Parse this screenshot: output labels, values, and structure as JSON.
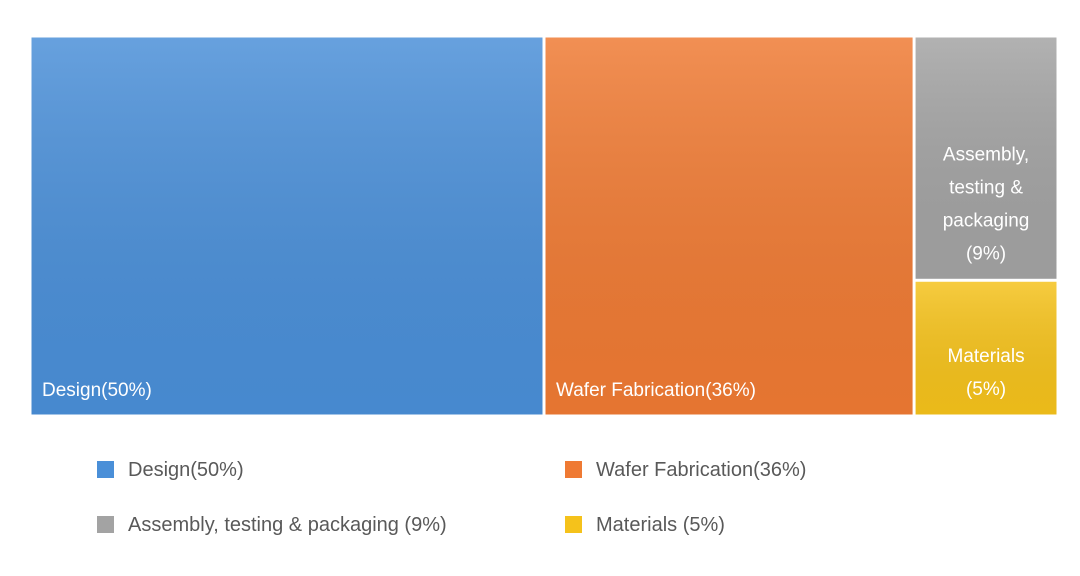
{
  "chart_data": {
    "type": "treemap",
    "title": "",
    "items": [
      {
        "label": "Design(50%)",
        "value": 50,
        "color": "#4a8fd8"
      },
      {
        "label": "Wafer Fabrication(36%)",
        "value": 36,
        "color": "#ef7a33"
      },
      {
        "label": "Assembly, testing & packaging (9%)",
        "value": 9,
        "color": "#a3a3a3",
        "tile_lines": [
          "Assembly,",
          "testing &",
          "packaging",
          "(9%)"
        ]
      },
      {
        "label": "Materials (5%)",
        "value": 5,
        "color": "#f5c21b",
        "tile_lines": [
          "Materials",
          "(5%)"
        ]
      }
    ],
    "legend": {
      "position": "bottom",
      "entries": [
        "Design(50%)",
        "Wafer Fabrication(36%)",
        "Assembly, testing & packaging (9%)",
        "Materials (5%)"
      ]
    }
  }
}
